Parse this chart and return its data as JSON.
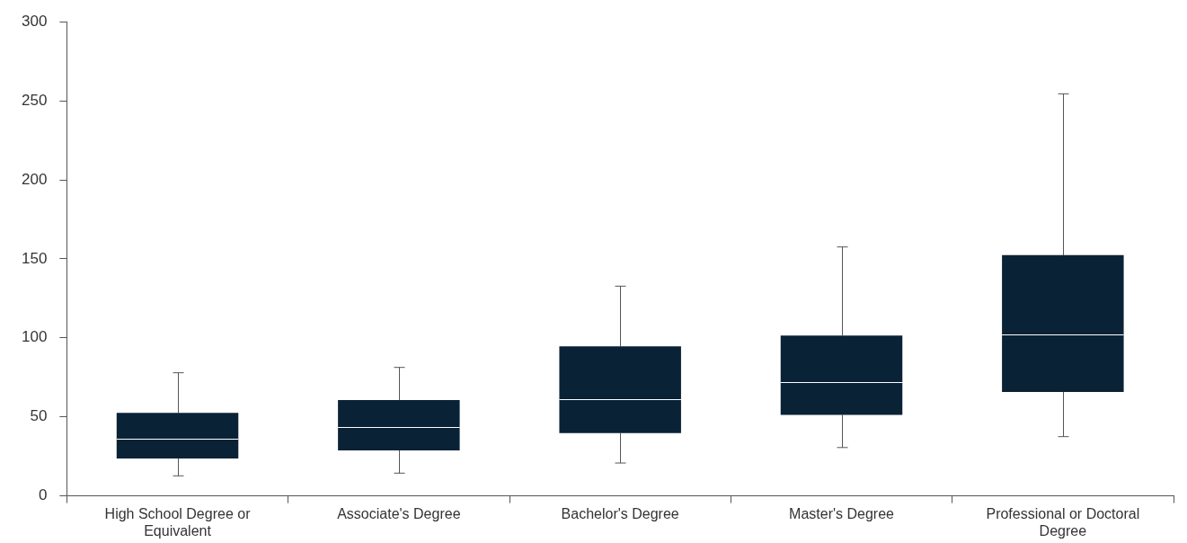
{
  "chart_data": {
    "type": "box",
    "categories": [
      "High School Degree or Equivalent",
      "Associate's Degree",
      "Bachelor's Degree",
      "Master's Degree",
      "Professional or Doctoral Degree"
    ],
    "color": "#0a2236",
    "boxes": [
      {
        "low": 12.7,
        "q1": 23.7,
        "median": 36.3,
        "q3": 52.5,
        "high": 77.9
      },
      {
        "low": 14.4,
        "q1": 28.8,
        "median": 43.3,
        "q3": 60.6,
        "high": 81.3
      },
      {
        "low": 20.8,
        "q1": 39.8,
        "median": 61.2,
        "q3": 94.6,
        "high": 132.7
      },
      {
        "low": 30.6,
        "q1": 51.3,
        "median": 72.1,
        "q3": 101.5,
        "high": 157.5
      },
      {
        "low": 37.5,
        "q1": 65.8,
        "median": 102.1,
        "q3": 152.3,
        "high": 254.4
      }
    ],
    "ylim": [
      0,
      300
    ],
    "yticks": [
      0,
      50,
      100,
      150,
      200,
      250,
      300
    ],
    "grid": false,
    "legend": false
  }
}
